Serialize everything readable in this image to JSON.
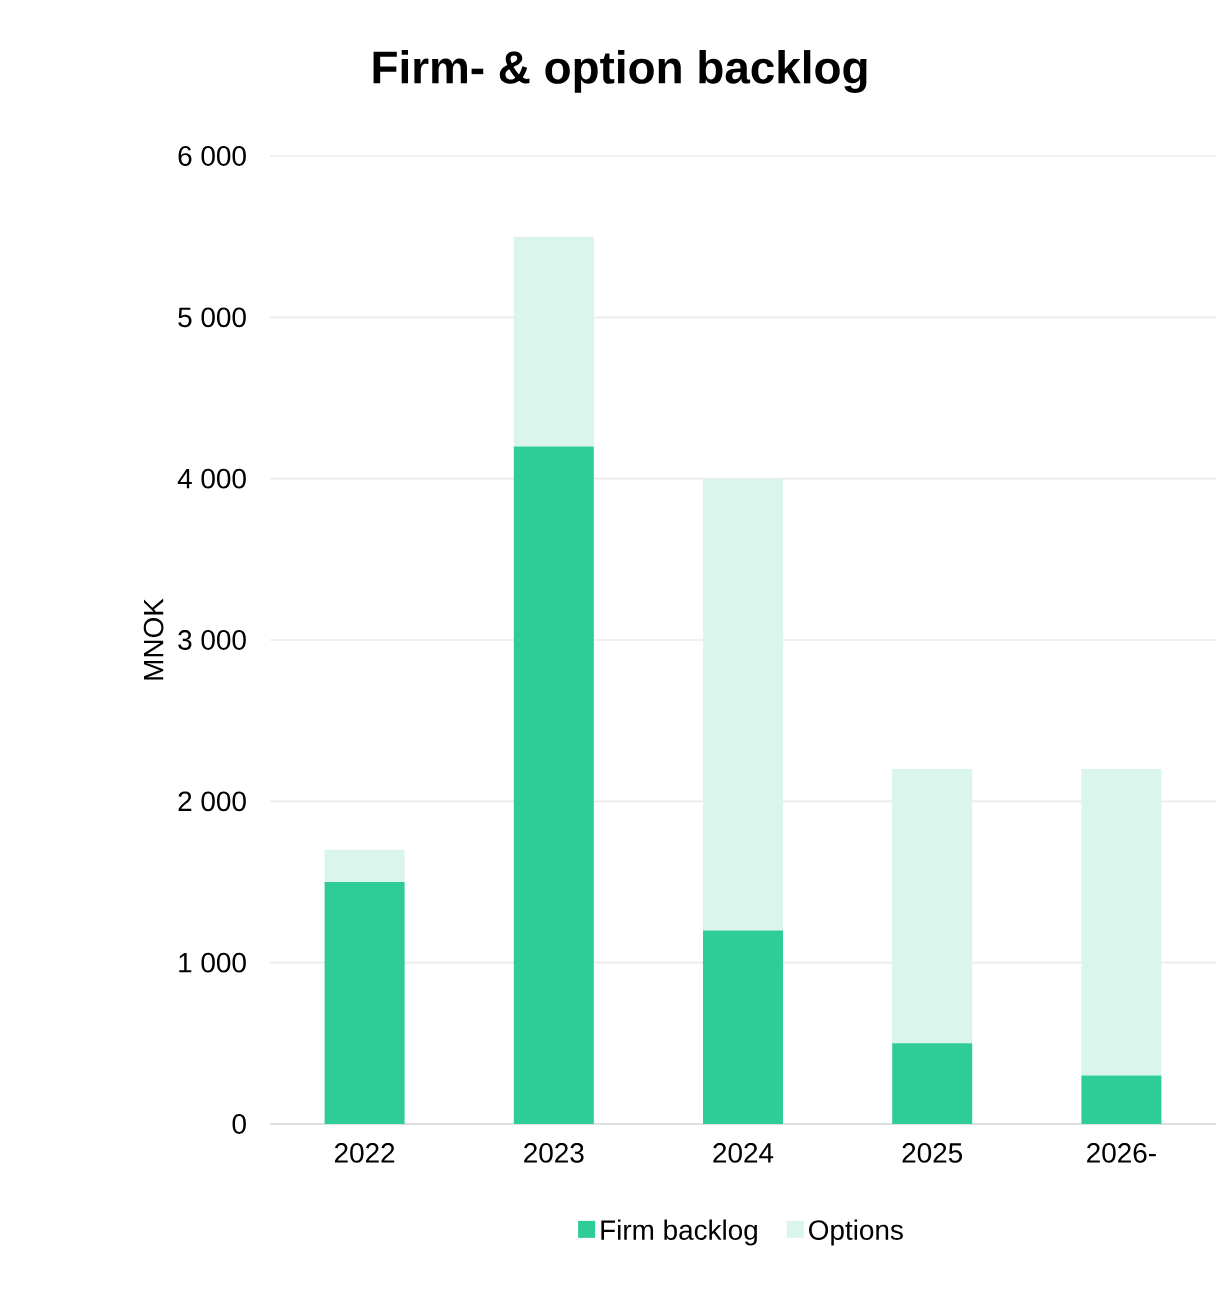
{
  "chart_data": {
    "type": "bar",
    "title": "Firm- & option backlog",
    "ylabel": "MNOK",
    "stacked": true,
    "categories": [
      "2022",
      "2023",
      "2024",
      "2025",
      "2026-"
    ],
    "series": [
      {
        "name": "Firm backlog",
        "color": "#2ecc96",
        "values": [
          1500,
          4200,
          1200,
          500,
          300
        ]
      },
      {
        "name": "Options",
        "color": "#d9f5ec",
        "values": [
          200,
          1300,
          2800,
          1700,
          1900
        ]
      }
    ],
    "ylim": [
      0,
      6000
    ],
    "yticks": [
      {
        "value": 0,
        "label": "0"
      },
      {
        "value": 1000,
        "label": "1 000"
      },
      {
        "value": 2000,
        "label": "2 000"
      },
      {
        "value": 3000,
        "label": "3 000"
      },
      {
        "value": 4000,
        "label": "4 000"
      },
      {
        "value": 5000,
        "label": "5 000"
      },
      {
        "value": 6000,
        "label": "6 000"
      }
    ],
    "grid": "y",
    "legend": "bottom"
  }
}
